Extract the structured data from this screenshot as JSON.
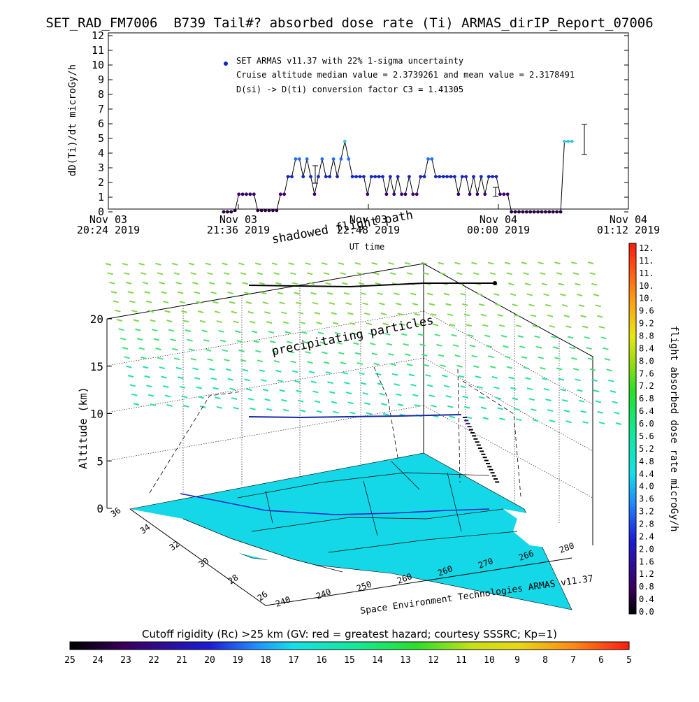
{
  "title": "SET_RAD_FM7006  B739 Tail#? absorbed dose rate (Ti) ARMAS_dirIP_Report_07006",
  "chart_data": [
    {
      "type": "scatter",
      "ylabel": "dD(Ti)/dt microGy/h",
      "xlabel": "UT time",
      "ylim": [
        0,
        12
      ],
      "yticks": [
        0,
        1,
        2,
        3,
        4,
        5,
        6,
        7,
        8,
        9,
        10,
        11,
        12
      ],
      "xticks": [
        {
          "line1": "Nov 03",
          "line2": "20:24 2019"
        },
        {
          "line1": "Nov 03",
          "line2": "21:36 2019"
        },
        {
          "line1": "Nov 03",
          "line2": "22:48 2019"
        },
        {
          "line1": "Nov 04",
          "line2": "00:00 2019"
        },
        {
          "line1": "Nov 04",
          "line2": "01:12 2019"
        }
      ],
      "legend": {
        "series": "SET ARMAS v11.37 with 22% 1-sigma uncertainty",
        "median_note": "Cruise altitude median value = 2.3739261 and mean value = 2.3178491",
        "conversion_note": "D(si) -> D(ti) conversion factor C3 = 1.41305"
      },
      "series": [
        {
          "values_t_minutes": [
            0,
            3,
            6,
            9,
            12,
            15,
            18,
            21,
            24,
            27,
            30,
            33,
            36,
            39,
            42,
            45,
            48,
            51,
            54,
            57,
            60,
            63,
            66,
            69,
            72,
            75,
            78,
            81,
            84,
            87,
            90,
            93,
            96,
            99,
            102,
            105,
            108,
            111,
            114,
            117,
            120,
            123,
            126,
            129,
            132,
            135,
            138,
            141,
            144,
            147,
            150,
            153,
            156,
            159,
            162,
            165,
            168,
            171,
            174,
            177,
            180,
            183,
            186,
            189,
            192,
            195,
            198,
            201,
            204,
            207,
            210,
            213,
            216,
            219,
            222,
            225,
            228,
            231,
            234,
            237,
            240,
            243,
            246,
            249,
            252,
            255,
            258,
            261,
            264,
            267,
            270,
            273,
            276
          ],
          "doses": [
            0,
            0,
            0,
            0.1,
            1.2,
            1.2,
            1.2,
            1.2,
            1.2,
            0.1,
            0.1,
            0.1,
            0.1,
            0.1,
            0.1,
            1.2,
            1.2,
            2.4,
            2.4,
            3.6,
            3.6,
            2.4,
            3.6,
            2.4,
            1.2,
            2.4,
            3.6,
            2.4,
            2.4,
            3.6,
            2.4,
            3.6,
            4.8,
            3.6,
            2.4,
            2.4,
            2.4,
            2.4,
            1.2,
            2.4,
            2.4,
            2.4,
            2.4,
            1.2,
            2.4,
            1.2,
            2.4,
            1.2,
            1.2,
            2.4,
            1.2,
            1.2,
            2.4,
            2.4,
            3.6,
            3.6,
            2.4,
            2.4,
            2.4,
            2.4,
            2.4,
            2.4,
            1.2,
            2.4,
            2.4,
            1.2,
            2.4,
            1.2,
            2.4,
            1.2,
            2.4,
            2.4,
            2.4,
            1.2,
            1.2,
            1.2,
            0,
            0,
            0,
            0,
            0,
            0,
            0,
            0,
            0,
            0,
            0,
            0,
            0,
            0,
            4.8,
            4.8,
            4.8
          ]
        }
      ]
    },
    {
      "type": "3d-surface",
      "zlabel": "Altitude (km)",
      "zticks": [
        0,
        5,
        10,
        15,
        20
      ],
      "lat_ticks": [
        "36",
        "34",
        "32",
        "30",
        "28",
        "26"
      ],
      "lon_ticks": [
        "240",
        "240",
        "250",
        "260",
        "260",
        "270",
        "266",
        "280"
      ],
      "annotations": [
        "shadowed flight path",
        "precipitating particles"
      ],
      "footer": "Space Environment Technologies ARMAS v11.37"
    }
  ],
  "dose_colorbar": {
    "label": "flight absorbed dose rate microGy/h",
    "ticks": [
      "12.",
      "11.",
      "11.",
      "10.",
      "10.",
      "9.6",
      "9.2",
      "8.8",
      "8.4",
      "8.0",
      "7.6",
      "7.2",
      "6.8",
      "6.4",
      "6.0",
      "5.6",
      "5.2",
      "4.8",
      "4.4",
      "4.0",
      "3.6",
      "3.2",
      "2.8",
      "2.4",
      "2.0",
      "1.6",
      "1.2",
      "0.8",
      "0.4",
      "0.0"
    ]
  },
  "cutoff_colorbar": {
    "label": "Cutoff rigidity (Rc) >25 km (GV: red = greatest hazard; courtesy SSSRC; Kp=1)",
    "ticks": [
      "25",
      "24",
      "23",
      "22",
      "21",
      "20",
      "19",
      "18",
      "17",
      "16",
      "15",
      "14",
      "13",
      "12",
      "11",
      "10",
      "9",
      "8",
      "7",
      "6",
      "5"
    ]
  }
}
